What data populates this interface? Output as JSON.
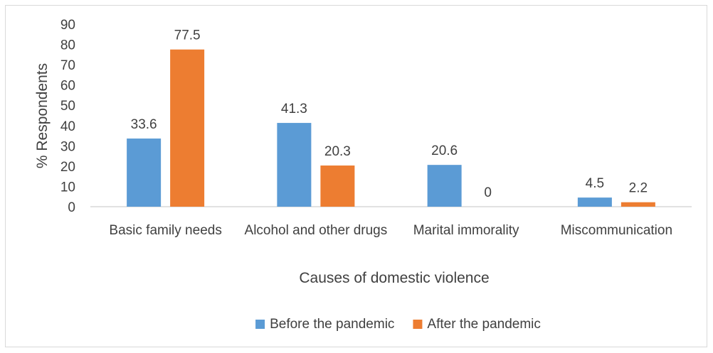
{
  "chart_data": {
    "type": "bar",
    "categories": [
      "Basic family needs",
      "Alcohol and other drugs",
      "Marital immorality",
      "Miscommunication"
    ],
    "series": [
      {
        "name": "Before the pandemic",
        "color": "#5B9BD5",
        "values": [
          33.6,
          41.3,
          20.6,
          4.5
        ]
      },
      {
        "name": "After the pandemic",
        "color": "#ED7D31",
        "values": [
          77.5,
          20.3,
          0,
          2.2
        ]
      }
    ],
    "xlabel": "Causes of domestic violence",
    "ylabel": "% Respondents",
    "ylim": [
      0,
      90
    ],
    "yticks": [
      0,
      10,
      20,
      30,
      40,
      50,
      60,
      70,
      80,
      90
    ],
    "grid": false,
    "legend_position": "bottom"
  }
}
